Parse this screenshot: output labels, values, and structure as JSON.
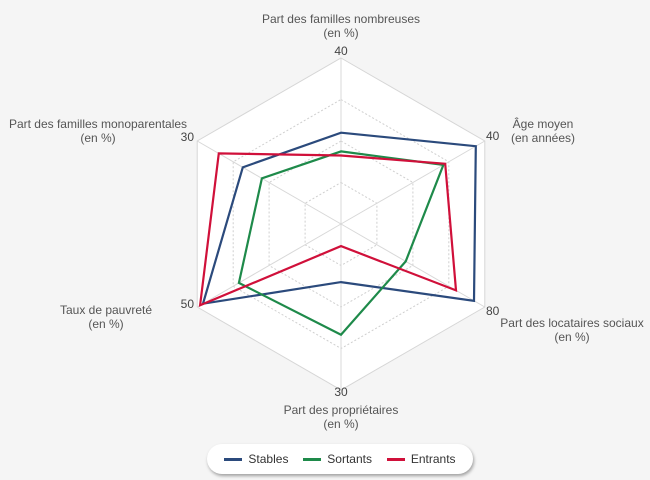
{
  "chart_data": {
    "type": "radar",
    "axes": [
      {
        "label": "Part des familles nombreuses",
        "sublabel": "(en %)",
        "max": 40,
        "max_label": "40"
      },
      {
        "label": "Âge moyen",
        "sublabel": "(en années)",
        "max": 40,
        "max_label": "40"
      },
      {
        "label": "Part des locataires sociaux",
        "sublabel": "(en %)",
        "max": 80,
        "max_label": "80"
      },
      {
        "label": "Part des propriétaires",
        "sublabel": "(en %)",
        "max": 30,
        "max_label": "30"
      },
      {
        "label": "Taux de pauvreté",
        "sublabel": "(en %)",
        "max": 50,
        "max_label": "50"
      },
      {
        "label": "Part des familles monoparentales",
        "sublabel": "(en %)",
        "max": 30,
        "max_label": "30"
      }
    ],
    "series": [
      {
        "name": "Stables",
        "color": "#2b4a7c",
        "values": [
          22,
          37.5,
          74,
          10.5,
          48,
          20.5
        ]
      },
      {
        "name": "Sortants",
        "color": "#1e8a4a",
        "values": [
          17.5,
          28.5,
          36,
          20,
          35.5,
          16.5
        ]
      },
      {
        "name": "Entrants",
        "color": "#d0103a",
        "values": [
          16.5,
          29,
          64,
          4,
          49,
          25.5
        ]
      }
    ],
    "gridlines": true,
    "legend_position": "bottom"
  }
}
